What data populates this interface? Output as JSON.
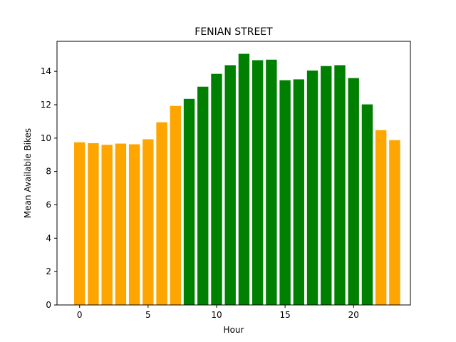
{
  "chart_data": {
    "type": "bar",
    "title": "FENIAN STREET",
    "xlabel": "Hour",
    "ylabel": "Mean Available Bikes",
    "x": [
      0,
      1,
      2,
      3,
      4,
      5,
      6,
      7,
      8,
      9,
      10,
      11,
      12,
      13,
      14,
      15,
      16,
      17,
      18,
      19,
      20,
      21,
      22,
      23
    ],
    "values": [
      9.75,
      9.7,
      9.6,
      9.67,
      9.63,
      9.93,
      10.95,
      11.93,
      12.35,
      13.08,
      13.85,
      14.37,
      15.05,
      14.67,
      14.7,
      13.47,
      13.52,
      14.05,
      14.32,
      14.37,
      13.6,
      12.02,
      10.48,
      9.88
    ],
    "colors": [
      "#ffa500",
      "#ffa500",
      "#ffa500",
      "#ffa500",
      "#ffa500",
      "#ffa500",
      "#ffa500",
      "#ffa500",
      "#008000",
      "#008000",
      "#008000",
      "#008000",
      "#008000",
      "#008000",
      "#008000",
      "#008000",
      "#008000",
      "#008000",
      "#008000",
      "#008000",
      "#008000",
      "#008000",
      "#ffa500",
      "#ffa500"
    ],
    "xlim": [
      -1.65,
      24.15
    ],
    "ylim": [
      0,
      15.8
    ],
    "xticks": [
      0,
      5,
      10,
      15,
      20
    ],
    "yticks": [
      0,
      2,
      4,
      6,
      8,
      10,
      12,
      14
    ],
    "grid": false,
    "legend": "none"
  }
}
